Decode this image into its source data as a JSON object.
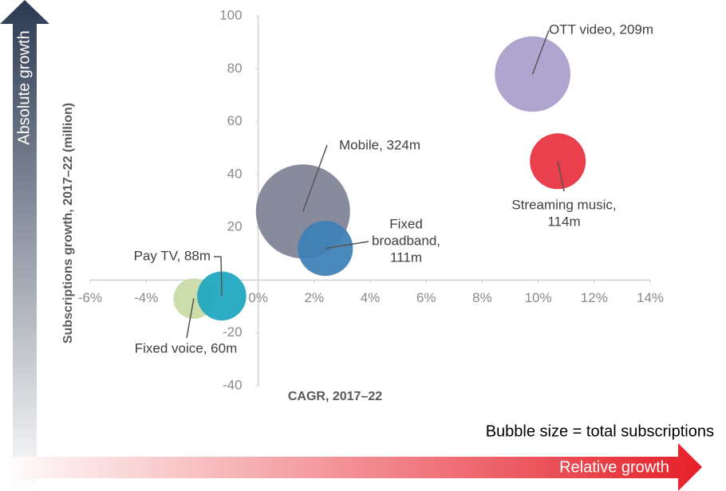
{
  "chart_data": {
    "type": "bubble",
    "xlabel": "CAGR, 2017–22",
    "ylabel": "Subscriptions growth, 2017–22 (million)",
    "xlim": [
      -6,
      14
    ],
    "xticks": [
      {
        "value": -6,
        "label": "-6%"
      },
      {
        "value": -4,
        "label": "-4%"
      },
      {
        "value": -2,
        "label": "-2%"
      },
      {
        "value": 0,
        "label": "0%"
      },
      {
        "value": 2,
        "label": "2%"
      },
      {
        "value": 4,
        "label": "4%"
      },
      {
        "value": 6,
        "label": "6%"
      },
      {
        "value": 8,
        "label": "8%"
      },
      {
        "value": 10,
        "label": "10%"
      },
      {
        "value": 12,
        "label": "12%"
      },
      {
        "value": 14,
        "label": "14%"
      }
    ],
    "ylim": [
      -40,
      100
    ],
    "yticks": [
      -40,
      -20,
      20,
      40,
      60,
      80,
      100
    ],
    "points": [
      {
        "label": [
          "OTT video, 209m"
        ],
        "x": 9.8,
        "y": 78,
        "size": 209,
        "color": "#a99dcb"
      },
      {
        "label": [
          "Streaming music,",
          "114m"
        ],
        "x": 10.7,
        "y": 45,
        "size": 114,
        "color": "#e8303f"
      },
      {
        "label": [
          "Mobile, 324m"
        ],
        "x": 1.6,
        "y": 26,
        "size": 324,
        "color": "#7d8193"
      },
      {
        "label": [
          "Fixed",
          "broadband,",
          "111m"
        ],
        "x": 2.4,
        "y": 12,
        "size": 111,
        "color": "#3d7fb5"
      },
      {
        "label": [
          "Fixed voice, 60m"
        ],
        "x": -2.3,
        "y": -7,
        "size": 60,
        "color": "#c5daa4"
      },
      {
        "label": [
          "Pay TV, 88m"
        ],
        "x": -1.3,
        "y": -6,
        "size": 88,
        "color": "#1ba6be"
      }
    ],
    "size_note": "Bubble size = total subscriptions",
    "vertical_arrow_label": "Absolute growth",
    "horizontal_arrow_label": "Relative growth"
  }
}
